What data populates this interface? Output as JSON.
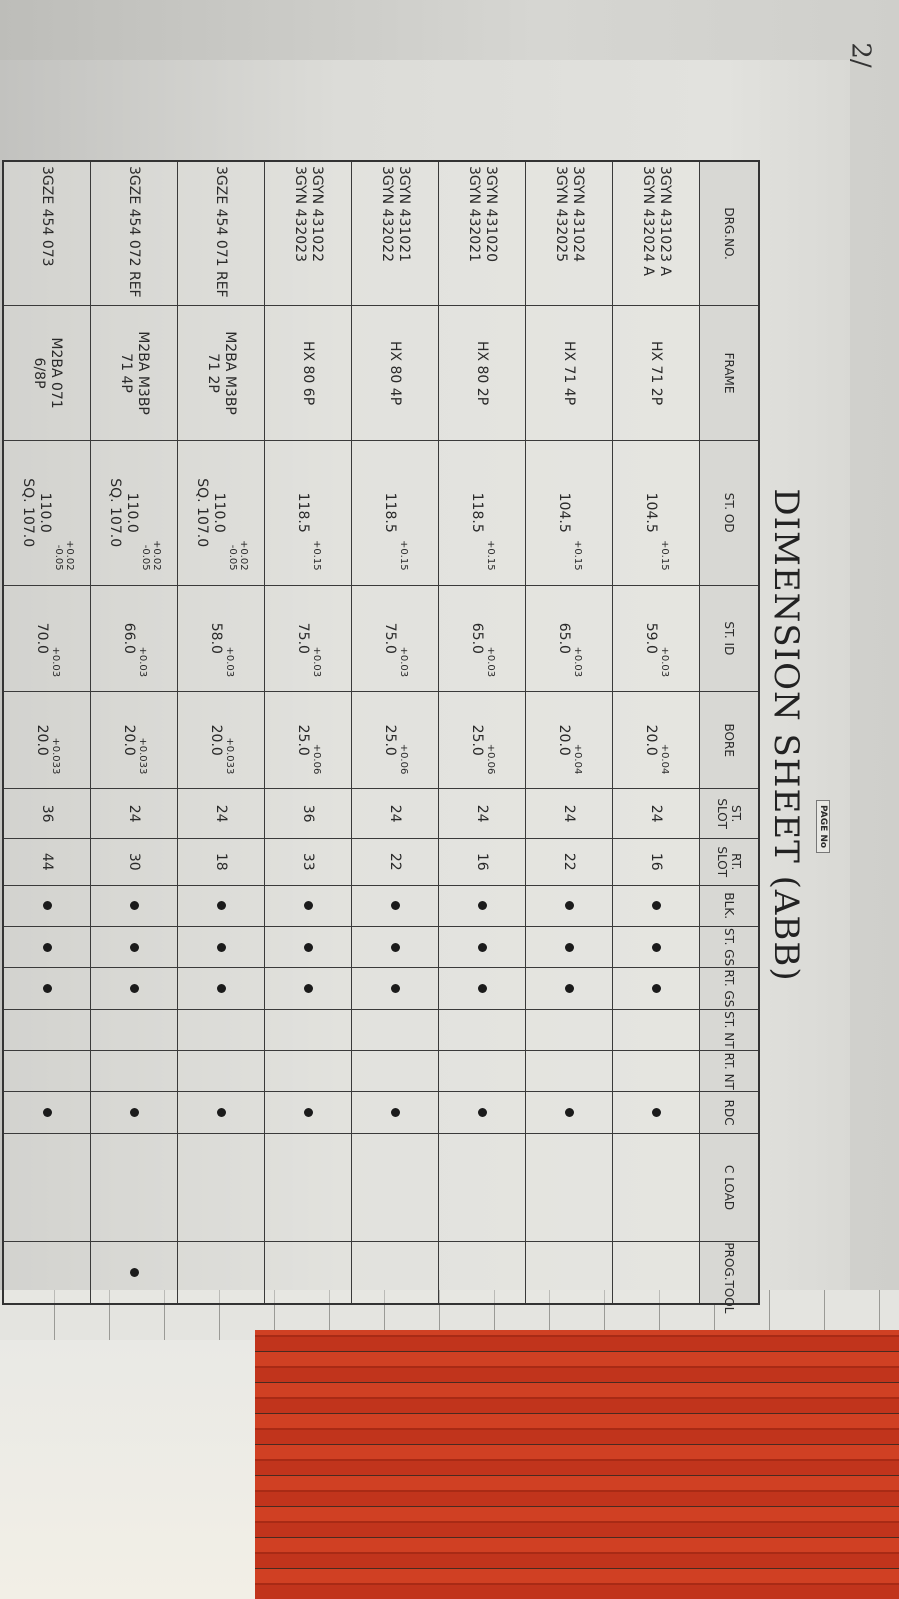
{
  "title": "DIMENSION SHEET (ABB)",
  "handwritten_note": "2/",
  "page_label": "PAGE No",
  "columns": [
    "DRG.NO.",
    "FRAME",
    "ST. OD",
    "ST. ID",
    "BORE",
    "ST. SLOT",
    "RT. SLOT",
    "BLK.",
    "ST. GS",
    "RT. GS",
    "ST. NT",
    "RT. NT",
    "RDC",
    "C LOAD",
    "PROG.TOOL"
  ],
  "rows": [
    {
      "drg": [
        "3GYN 431023 A",
        "3GYN 432024 A"
      ],
      "frame": [
        "HX 71 2P"
      ],
      "st_od": {
        "tol": [
          "+0.15"
        ],
        "value": [
          "104.5"
        ]
      },
      "st_id": {
        "tol": [
          "+0.03"
        ],
        "value": [
          "59.0"
        ]
      },
      "bore": {
        "tol": [
          "+0.04"
        ],
        "value": [
          "20.0"
        ]
      },
      "st_slot": "24",
      "rt_slot": "16",
      "blk": true,
      "st_gs": true,
      "rt_gs": true,
      "st_nt": false,
      "rt_nt": false,
      "rdc": true,
      "c_load": false,
      "prog_tool": false
    },
    {
      "drg": [
        "3GYN 431024",
        "3GYN 432025"
      ],
      "frame": [
        "HX 71 4P"
      ],
      "st_od": {
        "tol": [
          "+0.15"
        ],
        "value": [
          "104.5"
        ]
      },
      "st_id": {
        "tol": [
          "+0.03"
        ],
        "value": [
          "65.0"
        ]
      },
      "bore": {
        "tol": [
          "+0.04"
        ],
        "value": [
          "20.0"
        ]
      },
      "st_slot": "24",
      "rt_slot": "22",
      "blk": true,
      "st_gs": true,
      "rt_gs": true,
      "st_nt": false,
      "rt_nt": false,
      "rdc": true,
      "c_load": false,
      "prog_tool": false
    },
    {
      "drg": [
        "3GYN 431020",
        "3GYN 432021"
      ],
      "frame": [
        "HX 80 2P"
      ],
      "st_od": {
        "tol": [
          "+0.15"
        ],
        "value": [
          "118.5"
        ]
      },
      "st_id": {
        "tol": [
          "+0.03"
        ],
        "value": [
          "65.0"
        ]
      },
      "bore": {
        "tol": [
          "+0.06"
        ],
        "value": [
          "25.0"
        ]
      },
      "st_slot": "24",
      "rt_slot": "16",
      "blk": true,
      "st_gs": true,
      "rt_gs": true,
      "st_nt": false,
      "rt_nt": false,
      "rdc": true,
      "c_load": false,
      "prog_tool": false
    },
    {
      "drg": [
        "3GYN 431021",
        "3GYN 432022"
      ],
      "frame": [
        "HX 80 4P"
      ],
      "st_od": {
        "tol": [
          "+0.15"
        ],
        "value": [
          "118.5"
        ]
      },
      "st_id": {
        "tol": [
          "+0.03"
        ],
        "value": [
          "75.0"
        ]
      },
      "bore": {
        "tol": [
          "+0.06"
        ],
        "value": [
          "25.0"
        ]
      },
      "st_slot": "24",
      "rt_slot": "22",
      "blk": true,
      "st_gs": true,
      "rt_gs": true,
      "st_nt": false,
      "rt_nt": false,
      "rdc": true,
      "c_load": false,
      "prog_tool": false
    },
    {
      "drg": [
        "3GYN 431022",
        "3GYN 432023"
      ],
      "frame": [
        "HX 80 6P"
      ],
      "st_od": {
        "tol": [
          "+0.15"
        ],
        "value": [
          "118.5"
        ]
      },
      "st_id": {
        "tol": [
          "+0.03"
        ],
        "value": [
          "75.0"
        ]
      },
      "bore": {
        "tol": [
          "+0.06"
        ],
        "value": [
          "25.0"
        ]
      },
      "st_slot": "36",
      "rt_slot": "33",
      "blk": true,
      "st_gs": true,
      "rt_gs": true,
      "st_nt": false,
      "rt_nt": false,
      "rdc": true,
      "c_load": false,
      "prog_tool": false
    },
    {
      "drg": [
        "3GZE 454 071 REF"
      ],
      "frame": [
        "M2BA M3BP",
        "71 2P"
      ],
      "st_od": {
        "tol": [
          "+0.02",
          "-0.05"
        ],
        "value": [
          "110.0",
          "SQ. 107.0"
        ]
      },
      "st_id": {
        "tol": [
          "+0.03"
        ],
        "value": [
          "58.0"
        ]
      },
      "bore": {
        "tol": [
          "+0.033"
        ],
        "value": [
          "20.0"
        ]
      },
      "st_slot": "24",
      "rt_slot": "18",
      "blk": true,
      "st_gs": true,
      "rt_gs": true,
      "st_nt": false,
      "rt_nt": false,
      "rdc": true,
      "c_load": false,
      "prog_tool": false
    },
    {
      "drg": [
        "3GZE 454 072 REF"
      ],
      "frame": [
        "M2BA M3BP",
        "71 4P"
      ],
      "st_od": {
        "tol": [
          "+0.02",
          "-0.05"
        ],
        "value": [
          "110.0",
          "SQ. 107.0"
        ]
      },
      "st_id": {
        "tol": [
          "+0.03"
        ],
        "value": [
          "66.0"
        ]
      },
      "bore": {
        "tol": [
          "+0.033"
        ],
        "value": [
          "20.0"
        ]
      },
      "st_slot": "24",
      "rt_slot": "30",
      "blk": true,
      "st_gs": true,
      "rt_gs": true,
      "st_nt": false,
      "rt_nt": false,
      "rdc": true,
      "c_load": false,
      "prog_tool": true
    },
    {
      "drg": [
        "3GZE 454 073"
      ],
      "frame": [
        "M2BA 071",
        "6/8P"
      ],
      "st_od": {
        "tol": [
          "+0.02",
          "-0.05"
        ],
        "value": [
          "110.0",
          "SQ. 107.0"
        ]
      },
      "st_id": {
        "tol": [
          "+0.03"
        ],
        "value": [
          "70.0"
        ]
      },
      "bore": {
        "tol": [
          "+0.033"
        ],
        "value": [
          "20.0"
        ]
      },
      "st_slot": "36",
      "rt_slot": "44",
      "blk": true,
      "st_gs": true,
      "rt_gs": true,
      "st_nt": false,
      "rt_nt": false,
      "rdc": true,
      "c_load": false,
      "prog_tool": false
    }
  ]
}
